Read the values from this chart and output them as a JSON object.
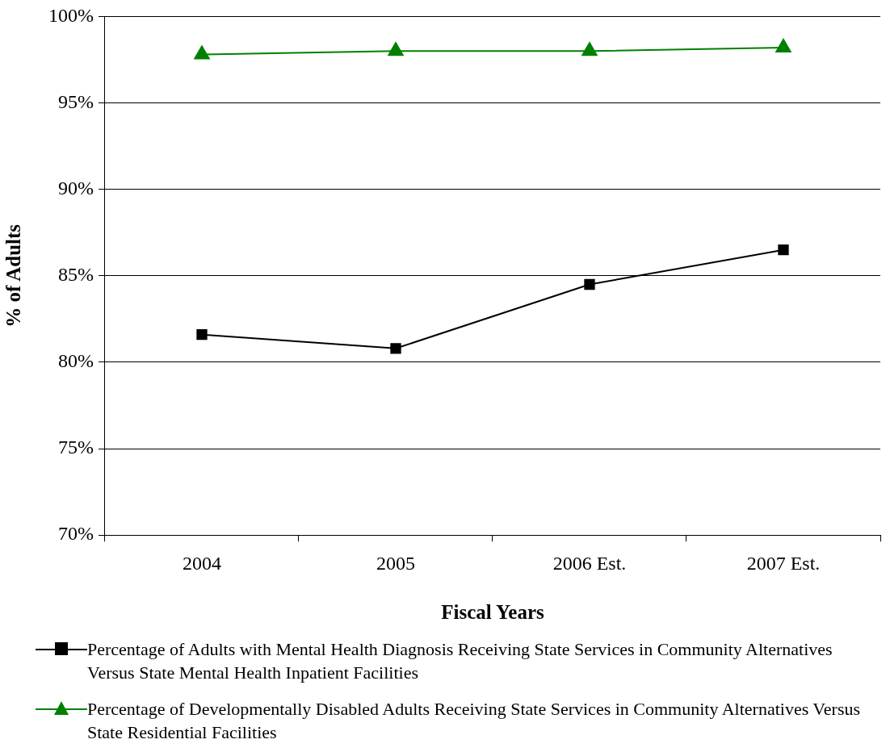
{
  "chart_data": {
    "type": "line",
    "categories": [
      "2004",
      "2005",
      "2006 Est.",
      "2007 Est."
    ],
    "xlabel": "Fiscal Years",
    "ylabel": "% of Adults",
    "ylim": [
      70,
      100
    ],
    "yticks": [
      {
        "value": 70,
        "label": "70%"
      },
      {
        "value": 75,
        "label": "75%"
      },
      {
        "value": 80,
        "label": "80%"
      },
      {
        "value": 85,
        "label": "85%"
      },
      {
        "value": 90,
        "label": "90%"
      },
      {
        "value": 95,
        "label": "95%"
      },
      {
        "value": 100,
        "label": "100%"
      }
    ],
    "grid": "y",
    "legend": "bottom",
    "line_style": "solid",
    "series": [
      {
        "name": "Percentage of Adults with Mental Health Diagnosis Receiving State Services in Community Alternatives Versus State Mental Health Inpatient Facilities",
        "color": "#000000",
        "marker": "square",
        "values": [
          81.6,
          80.8,
          84.5,
          86.5
        ]
      },
      {
        "name": "Percentage of Developmentally Disabled Adults Receiving State Services in Community Alternatives Versus State Residential Facilities",
        "color": "#008000",
        "marker": "triangle",
        "values": [
          97.8,
          98.0,
          98.0,
          98.2
        ]
      }
    ]
  }
}
